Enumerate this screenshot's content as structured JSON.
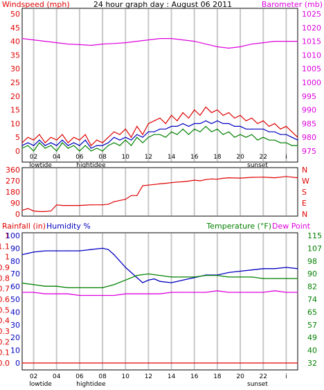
{
  "title": "24 hour graph day : August 06 2011",
  "colors": {
    "wind": "#e00000",
    "gust_line": "#0000c0",
    "green": "#008000",
    "baro": "#dd00dd",
    "grid": "#c8c8c8",
    "frame": "#000000",
    "dir": "#e00000",
    "humidity": "#0000c0",
    "temperature": "#008000",
    "dewpoint": "#dd00dd",
    "rain": "#e00000"
  },
  "x_ticks": [
    "02",
    "04",
    "06",
    "08",
    "10",
    "12",
    "14",
    "16",
    "18",
    "20",
    "22",
    "i"
  ],
  "events_top": [
    {
      "label": "lowtide",
      "hour": 1.6
    },
    {
      "label": "hightidee",
      "hour": 6.0
    },
    {
      "label": "sunset",
      "hour": 20.5
    }
  ],
  "chart_data": [
    {
      "type": "line",
      "name": "wind-barometer",
      "ylabel_left": "Windspeed (mph)",
      "ylabel_right": "Barometer (mb)",
      "left_ticks": [
        "50",
        "45",
        "40",
        "35",
        "30",
        "25",
        "20",
        "15",
        "10",
        "5",
        "0"
      ],
      "right_ticks": [
        "1025",
        "1020",
        "1015",
        "1010",
        "1005",
        "1000",
        "995",
        "990",
        "985",
        "980",
        "975"
      ],
      "ylim_left": [
        0,
        50
      ],
      "ylim_right": [
        975,
        1025
      ],
      "xlim": [
        0,
        24
      ],
      "series": [
        {
          "x": [
            0,
            1,
            2,
            3,
            4,
            5,
            6,
            7,
            8,
            9,
            10,
            11,
            12,
            13,
            14,
            15,
            16,
            17,
            18,
            19,
            20,
            21,
            22,
            23,
            24
          ],
          "y": [
            1016,
            1015.5,
            1015,
            1014.5,
            1014,
            1013.8,
            1013.5,
            1014,
            1014.2,
            1014.5,
            1015,
            1015.5,
            1016,
            1016,
            1015.5,
            1015,
            1014,
            1013,
            1012.5,
            1013,
            1014,
            1014.5,
            1015,
            1015,
            1015
          ],
          "axis": "right",
          "color_key": "baro"
        },
        {
          "x": [
            0,
            0.5,
            1,
            1.5,
            2,
            2.5,
            3,
            3.5,
            4,
            4.5,
            5,
            5.5,
            6,
            6.5,
            7,
            7.5,
            8,
            8.5,
            9,
            9.5,
            10,
            10.5,
            11,
            11.5,
            12,
            12.5,
            13,
            13.5,
            14,
            14.5,
            15,
            15.5,
            16,
            16.5,
            17,
            17.5,
            18,
            18.5,
            19,
            19.5,
            20,
            20.5,
            21,
            21.5,
            22,
            22.5,
            23,
            23.5,
            24
          ],
          "y": [
            3,
            5,
            4,
            6,
            3,
            5,
            4,
            6,
            3,
            5,
            4,
            6,
            2,
            4,
            3,
            5,
            7,
            6,
            8,
            5,
            9,
            6,
            10,
            11,
            12,
            10,
            13,
            11,
            14,
            12,
            15,
            13,
            16,
            14,
            15,
            13,
            14,
            12,
            13,
            11,
            12,
            10,
            11,
            9,
            10,
            8,
            9,
            7,
            5
          ],
          "axis": "left",
          "color_key": "wind"
        },
        {
          "x": [
            0,
            0.5,
            1,
            1.5,
            2,
            2.5,
            3,
            3.5,
            4,
            4.5,
            5,
            5.5,
            6,
            6.5,
            7,
            7.5,
            8,
            8.5,
            9,
            9.5,
            10,
            10.5,
            11,
            11.5,
            12,
            12.5,
            13,
            13.5,
            14,
            14.5,
            15,
            15.5,
            16,
            16.5,
            17,
            17.5,
            18,
            18.5,
            19,
            19.5,
            20,
            20.5,
            21,
            21.5,
            22,
            22.5,
            23,
            23.5,
            24
          ],
          "y": [
            2,
            3,
            2,
            4,
            2,
            3,
            2,
            4,
            2,
            3,
            2,
            4,
            1,
            2,
            2,
            3,
            5,
            4,
            5,
            4,
            6,
            5,
            7,
            7,
            8,
            8,
            9,
            9,
            10,
            9,
            10,
            10,
            11,
            10,
            11,
            10,
            10,
            9,
            9,
            8,
            8,
            8,
            8,
            7,
            7,
            6,
            6,
            5,
            4
          ],
          "axis": "left",
          "color_key": "gust_line"
        },
        {
          "x": [
            0,
            0.5,
            1,
            1.5,
            2,
            2.5,
            3,
            3.5,
            4,
            4.5,
            5,
            5.5,
            6,
            6.5,
            7,
            7.5,
            8,
            8.5,
            9,
            9.5,
            10,
            10.5,
            11,
            11.5,
            12,
            12.5,
            13,
            13.5,
            14,
            14.5,
            15,
            15.5,
            16,
            16.5,
            17,
            17.5,
            18,
            18.5,
            19,
            19.5,
            20,
            20.5,
            21,
            21.5,
            22,
            22.5,
            23,
            23.5,
            24
          ],
          "y": [
            1,
            2,
            0,
            3,
            1,
            2,
            0,
            3,
            1,
            2,
            0,
            2,
            0,
            1,
            0,
            2,
            3,
            2,
            4,
            2,
            5,
            3,
            5,
            6,
            6,
            5,
            7,
            6,
            8,
            6,
            8,
            7,
            9,
            7,
            8,
            6,
            7,
            5,
            6,
            5,
            6,
            4,
            5,
            4,
            4,
            3,
            3,
            2,
            2
          ],
          "axis": "left",
          "color_key": "green"
        }
      ]
    },
    {
      "type": "line",
      "name": "wind-direction",
      "left_ticks": [
        "360",
        "270",
        "180",
        "90",
        "0"
      ],
      "right_ticks": [
        "N",
        "W",
        "S",
        "E",
        "N"
      ],
      "ylim": [
        0,
        360
      ],
      "xlim": [
        0,
        24
      ],
      "series": [
        {
          "x": [
            0,
            0.5,
            1,
            1.5,
            2,
            2.5,
            3,
            3.5,
            4,
            5,
            6,
            7,
            7.5,
            8,
            8.5,
            9,
            9.5,
            10,
            10.5,
            11,
            11.5,
            12,
            12.5,
            13,
            13.5,
            14,
            14.5,
            15,
            15.5,
            16,
            16.5,
            17,
            17.5,
            18,
            19,
            20,
            21,
            22,
            23,
            23.5,
            24
          ],
          "y": [
            30,
            45,
            25,
            20,
            20,
            25,
            75,
            70,
            70,
            70,
            75,
            75,
            80,
            100,
            110,
            120,
            150,
            150,
            230,
            235,
            240,
            245,
            250,
            255,
            260,
            262,
            268,
            275,
            270,
            280,
            285,
            283,
            290,
            295,
            292,
            298,
            300,
            295,
            305,
            300,
            295
          ],
          "color_key": "dir"
        }
      ]
    },
    {
      "type": "line",
      "name": "humidity-temperature",
      "ylabel_left": "Rainfall (in)",
      "ylabel_humidity": "Humidity %",
      "ylabel_right": "Temperature (°F)",
      "ylabel_dew": "Dew Point",
      "left_rain_ticks": [
        "1",
        "1.1",
        "1",
        "0.9",
        "0.8",
        "0.7",
        "0.6",
        "0.5",
        "0.4",
        "0.3",
        "0.2",
        "0.1",
        "0.0"
      ],
      "left_hum_ticks": [
        "100",
        "90",
        "80",
        "70",
        "60",
        "50",
        "40",
        "30",
        "20",
        "10",
        "0"
      ],
      "right_ticks": [
        "115",
        "107",
        "98",
        "90",
        "82",
        "74",
        "65",
        "57",
        "49",
        "40",
        "32"
      ],
      "ylim_humidity": [
        0,
        100
      ],
      "ylim_temp": [
        32,
        115
      ],
      "xlim": [
        0,
        24
      ],
      "series": [
        {
          "name": "Humidity %",
          "x": [
            0,
            0.5,
            1,
            2,
            3,
            4,
            5,
            6,
            7,
            7.5,
            8,
            8.5,
            9,
            9.5,
            10,
            10.5,
            11,
            11.5,
            12,
            13,
            14,
            15,
            16,
            17,
            18,
            19,
            20,
            21,
            22,
            23,
            24
          ],
          "y": [
            85,
            86,
            87,
            88,
            88,
            88,
            88,
            89,
            90,
            89,
            85,
            80,
            75,
            71,
            67,
            63,
            65,
            66,
            64,
            63,
            65,
            67,
            69,
            69,
            71,
            72,
            73,
            74,
            74,
            75,
            74
          ],
          "axis": "humidity",
          "color_key": "humidity"
        },
        {
          "name": "Temperature (°F)",
          "x": [
            0,
            1,
            2,
            3,
            4,
            5,
            6,
            7,
            8,
            9,
            10,
            11,
            12,
            13,
            14,
            15,
            16,
            17,
            18,
            19,
            20,
            21,
            22,
            23,
            24
          ],
          "y": [
            84,
            83,
            82,
            82,
            81,
            81,
            81,
            81,
            83,
            86,
            89,
            90,
            89,
            88,
            88,
            88,
            89,
            89,
            88,
            88,
            88,
            87,
            87,
            87,
            87
          ],
          "axis": "temp",
          "color_key": "temperature"
        },
        {
          "name": "Dew Point",
          "x": [
            0,
            1,
            2,
            3,
            4,
            5,
            6,
            7,
            8,
            9,
            10,
            11,
            12,
            13,
            14,
            15,
            16,
            17,
            18,
            19,
            20,
            21,
            22,
            23,
            24
          ],
          "y": [
            78,
            78,
            77,
            77,
            77,
            76,
            76,
            76,
            76,
            77,
            77,
            77,
            77,
            78,
            78,
            78,
            78,
            79,
            78,
            78,
            78,
            78,
            79,
            78,
            78
          ],
          "axis": "temp",
          "color_key": "dewpoint"
        },
        {
          "name": "Rainfall (in)",
          "x": [
            0,
            24
          ],
          "y": [
            0,
            0
          ],
          "axis": "humidity",
          "color_key": "rain"
        }
      ]
    }
  ]
}
